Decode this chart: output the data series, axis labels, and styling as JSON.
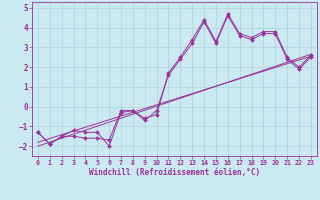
{
  "title": "",
  "xlabel": "Windchill (Refroidissement éolien,°C)",
  "ylabel": "",
  "bg_color": "#cbe9f0",
  "line_color": "#993399",
  "grid_color": "#aad4dd",
  "xlim": [
    -0.5,
    23.5
  ],
  "ylim": [
    -2.5,
    5.3
  ],
  "xticks": [
    0,
    1,
    2,
    3,
    4,
    5,
    6,
    7,
    8,
    9,
    10,
    11,
    12,
    13,
    14,
    15,
    16,
    17,
    18,
    19,
    20,
    21,
    22,
    23
  ],
  "yticks": [
    -2,
    -1,
    0,
    1,
    2,
    3,
    4,
    5
  ],
  "series": [
    {
      "x": [
        0,
        1,
        2,
        3,
        4,
        5,
        6,
        7,
        8,
        9,
        10,
        11,
        12,
        13,
        14,
        15,
        16,
        17,
        18,
        19,
        20,
        21,
        22,
        23
      ],
      "y": [
        -1.3,
        -1.9,
        -1.5,
        -1.5,
        -1.6,
        -1.6,
        -1.7,
        -0.2,
        -0.2,
        -0.6,
        -0.4,
        1.7,
        2.5,
        3.4,
        4.4,
        3.3,
        4.7,
        3.7,
        3.5,
        3.8,
        3.8,
        2.5,
        2.0,
        2.6
      ],
      "has_markers": true
    },
    {
      "x": [
        0,
        1,
        2,
        3,
        4,
        5,
        6,
        7,
        8,
        9,
        10,
        11,
        12,
        13,
        14,
        15,
        16,
        17,
        18,
        19,
        20,
        21,
        22,
        23
      ],
      "y": [
        -1.3,
        -1.9,
        -1.5,
        -1.2,
        -1.3,
        -1.3,
        -2.0,
        -0.3,
        -0.2,
        -0.7,
        -0.2,
        1.6,
        2.4,
        3.2,
        4.3,
        3.2,
        4.6,
        3.6,
        3.4,
        3.7,
        3.7,
        2.4,
        1.9,
        2.5
      ],
      "has_markers": true
    },
    {
      "x": [
        0,
        23
      ],
      "y": [
        -1.8,
        2.55
      ],
      "has_markers": false
    },
    {
      "x": [
        0,
        23
      ],
      "y": [
        -2.0,
        2.65
      ],
      "has_markers": false
    }
  ]
}
